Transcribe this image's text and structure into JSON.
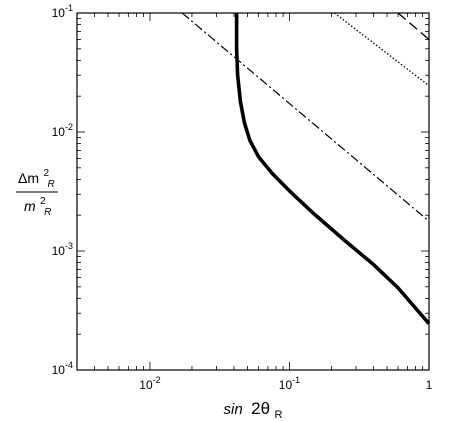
{
  "chart_data": {
    "type": "line",
    "title": "",
    "xlabel": {
      "prefix": "sin",
      "main": "2θ",
      "sub": "R"
    },
    "ylabel": {
      "numerator": "Δm",
      "numerator_sup": "2",
      "numerator_sub": "R",
      "denominator": "m",
      "denominator_sup": "2",
      "denominator_sub": "R"
    },
    "xscale": "log",
    "yscale": "log",
    "xlim": [
      0.003,
      1
    ],
    "ylim": [
      0.0001,
      0.1
    ],
    "grid": false,
    "legend": "none",
    "x_ticks": [
      {
        "value": 0.01,
        "base": "10",
        "exp": "-2"
      },
      {
        "value": 0.1,
        "base": "10",
        "exp": "-1"
      },
      {
        "value": 1,
        "base": "1",
        "exp": ""
      }
    ],
    "y_ticks": [
      {
        "value": 0.0001,
        "base": "10",
        "exp": "-4"
      },
      {
        "value": 0.001,
        "base": "10",
        "exp": "-3"
      },
      {
        "value": 0.01,
        "base": "10",
        "exp": "-2"
      },
      {
        "value": 0.1,
        "base": "10",
        "exp": "-1"
      }
    ],
    "series": [
      {
        "style": "solid-thick",
        "color": "#000000",
        "points": [
          [
            0.0418,
            0.1
          ],
          [
            0.0418,
            0.05
          ],
          [
            0.0425,
            0.03
          ],
          [
            0.0445,
            0.018
          ],
          [
            0.0475,
            0.012
          ],
          [
            0.052,
            0.0085
          ],
          [
            0.06,
            0.0062
          ],
          [
            0.075,
            0.0045
          ],
          [
            0.1,
            0.0032
          ],
          [
            0.15,
            0.00205
          ],
          [
            0.25,
            0.00122
          ],
          [
            0.4,
            0.00077
          ],
          [
            0.6,
            0.00049
          ],
          [
            1.0,
            0.000245
          ]
        ]
      },
      {
        "style": "dash-dot",
        "color": "#000000",
        "points": [
          [
            0.017,
            0.1
          ],
          [
            1.0,
            0.00178
          ]
        ]
      },
      {
        "style": "dotted",
        "color": "#000000",
        "points": [
          [
            0.21,
            0.1
          ],
          [
            1.0,
            0.0245
          ]
        ]
      },
      {
        "style": "long-dash",
        "color": "#000000",
        "points": [
          [
            0.6,
            0.1
          ],
          [
            1.0,
            0.06
          ]
        ]
      }
    ]
  }
}
